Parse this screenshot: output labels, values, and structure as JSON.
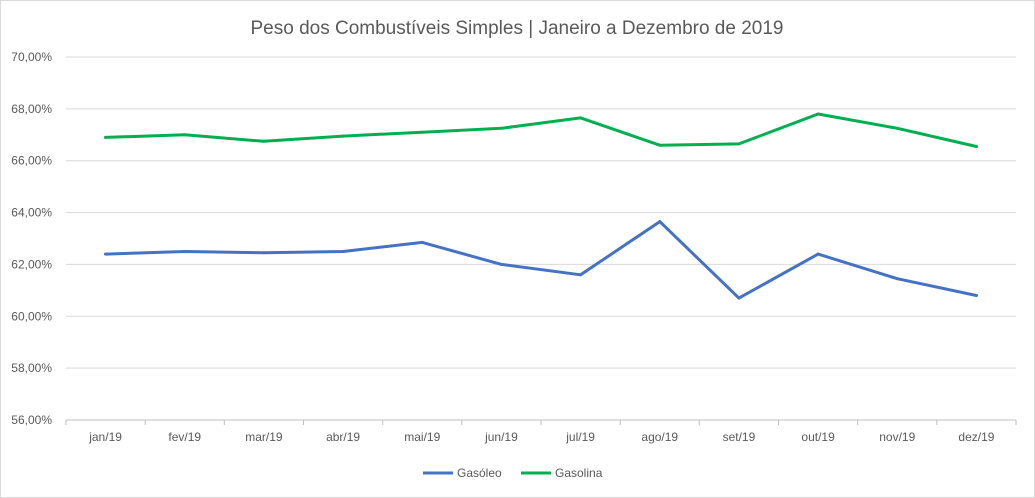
{
  "chart_data": {
    "type": "line",
    "title": "Peso dos Combustíveis Simples | Janeiro a Dezembro de 2019",
    "xlabel": "",
    "ylabel": "",
    "categories": [
      "jan/19",
      "fev/19",
      "mar/19",
      "abr/19",
      "mai/19",
      "jun/19",
      "jul/19",
      "ago/19",
      "set/19",
      "out/19",
      "nov/19",
      "dez/19"
    ],
    "ylim": [
      56,
      70
    ],
    "yticks": [
      56,
      58,
      60,
      62,
      64,
      66,
      68,
      70
    ],
    "ytick_labels": [
      "56,00%",
      "58,00%",
      "60,00%",
      "62,00%",
      "64,00%",
      "66,00%",
      "68,00%",
      "70,00%"
    ],
    "grid": true,
    "legend": "bottom",
    "series": [
      {
        "name": "Gasóleo",
        "color": "#4472c4",
        "values": [
          62.4,
          62.5,
          62.45,
          62.5,
          62.85,
          62.0,
          61.6,
          63.65,
          60.7,
          62.4,
          61.45,
          60.8
        ]
      },
      {
        "name": "Gasolina",
        "color": "#00b050",
        "values": [
          66.9,
          67.0,
          66.75,
          66.95,
          67.1,
          67.25,
          67.65,
          66.6,
          66.65,
          67.8,
          67.25,
          66.55
        ]
      }
    ]
  }
}
